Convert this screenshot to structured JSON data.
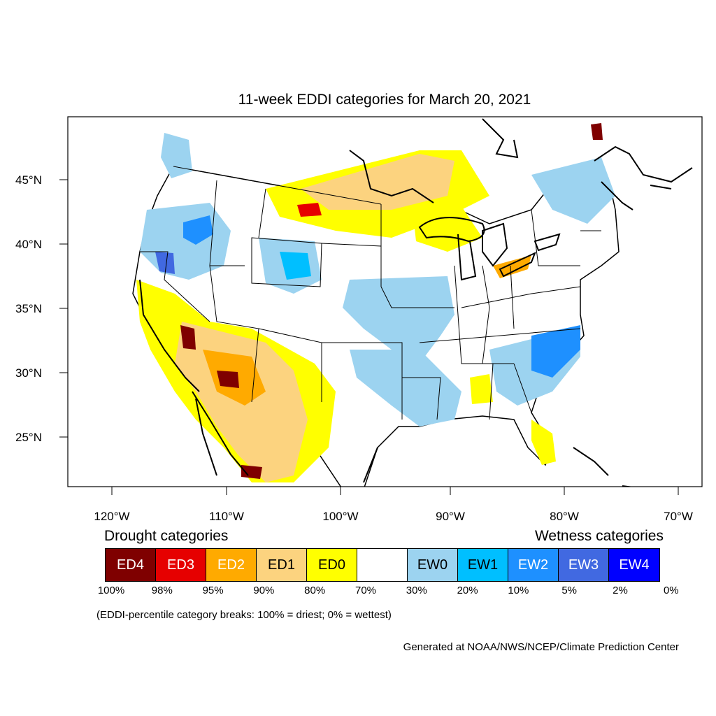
{
  "title": "11-week EDDI categories for March 20, 2021",
  "axes": {
    "lat_ticks": [
      "45°N",
      "40°N",
      "35°N",
      "30°N",
      "25°N"
    ],
    "lon_ticks": [
      "120°W",
      "110°W",
      "100°W",
      "90°W",
      "80°W",
      "70°W"
    ]
  },
  "legend": {
    "drought_heading": "Drought categories",
    "wetness_heading": "Wetness categories",
    "categories": [
      {
        "label": "ED4",
        "color": "#7f0000",
        "text_color": "#ffffff"
      },
      {
        "label": "ED3",
        "color": "#e60000",
        "text_color": "#ffffff"
      },
      {
        "label": "ED2",
        "color": "#ffaa00",
        "text_color": "#ffffff"
      },
      {
        "label": "ED1",
        "color": "#fcd37f",
        "text_color": "#000000"
      },
      {
        "label": "ED0",
        "color": "#ffff00",
        "text_color": "#000000"
      },
      {
        "label": "",
        "color": "#ffffff",
        "text_color": "#000000"
      },
      {
        "label": "EW0",
        "color": "#9cd3f0",
        "text_color": "#000000"
      },
      {
        "label": "EW1",
        "color": "#00bfff",
        "text_color": "#000000"
      },
      {
        "label": "EW2",
        "color": "#1e90ff",
        "text_color": "#ffffff"
      },
      {
        "label": "EW3",
        "color": "#4169e1",
        "text_color": "#ffffff"
      },
      {
        "label": "EW4",
        "color": "#0000ff",
        "text_color": "#ffffff"
      }
    ],
    "percentiles": [
      "100%",
      "98%",
      "95%",
      "90%",
      "80%",
      "70%",
      "30%",
      "20%",
      "10%",
      "5%",
      "2%",
      "0%"
    ]
  },
  "note": "(EDDI-percentile category breaks: 100% = driest; 0% = wettest)",
  "credit": "Generated at NOAA/NWS/NCEP/Climate Prediction Center"
}
